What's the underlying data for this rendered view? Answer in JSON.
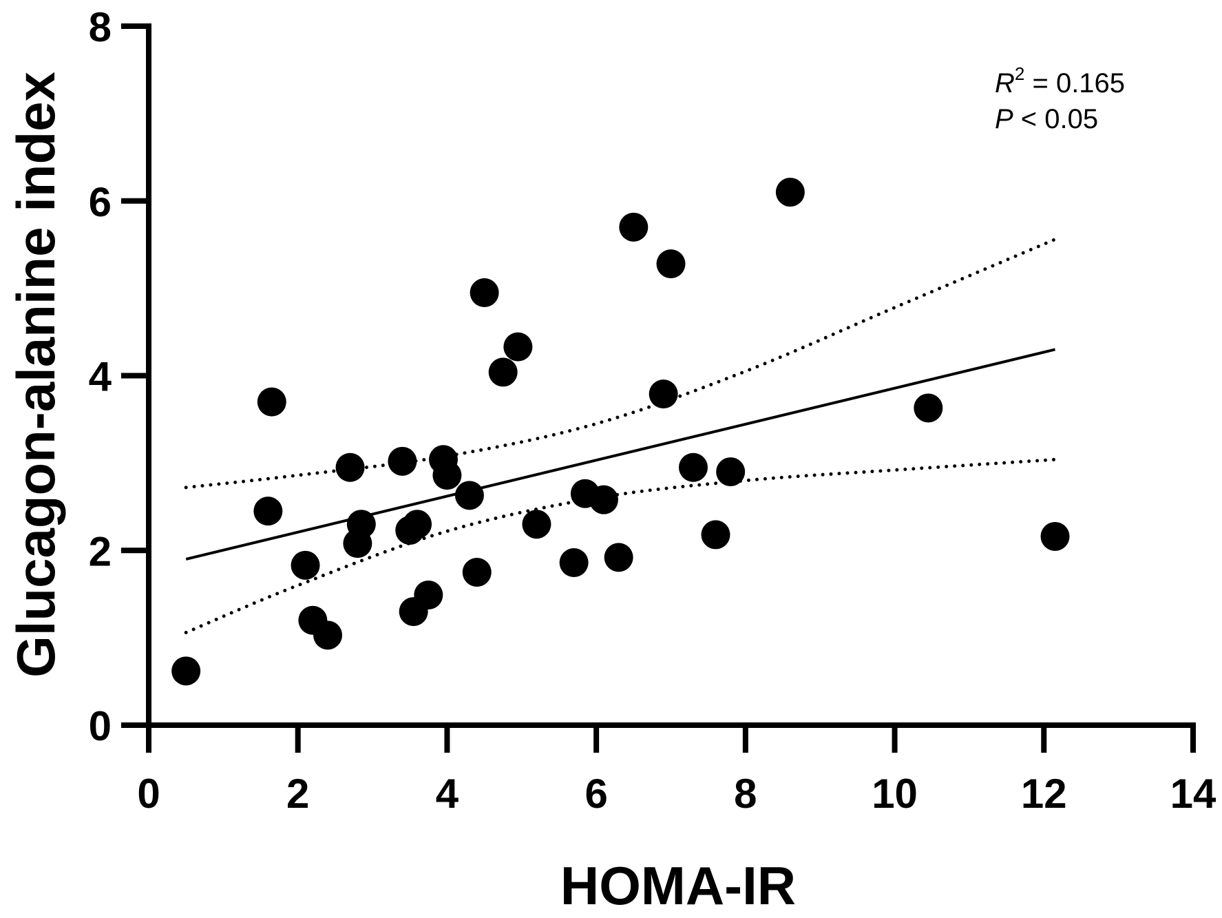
{
  "chart_data": {
    "type": "scatter",
    "title": "",
    "xlabel": "HOMA-IR",
    "ylabel": "Glucagon-alanine index",
    "xlim": [
      0,
      14
    ],
    "ylim": [
      0,
      8
    ],
    "x_ticks": [
      0,
      2,
      4,
      6,
      8,
      10,
      12,
      14
    ],
    "y_ticks": [
      0,
      2,
      4,
      6,
      8
    ],
    "x_tick_labels": [
      "0",
      "2",
      "4",
      "6",
      "8",
      "10",
      "12",
      "14"
    ],
    "y_tick_labels": [
      "0",
      "2",
      "4",
      "6",
      "8"
    ],
    "grid": false,
    "legend": "none",
    "marker_color": "#000000",
    "points": [
      {
        "x": 0.5,
        "y": 0.62
      },
      {
        "x": 1.6,
        "y": 2.45
      },
      {
        "x": 1.65,
        "y": 3.7
      },
      {
        "x": 2.1,
        "y": 1.83
      },
      {
        "x": 2.2,
        "y": 1.2
      },
      {
        "x": 2.4,
        "y": 1.03
      },
      {
        "x": 2.7,
        "y": 2.95
      },
      {
        "x": 2.8,
        "y": 2.08
      },
      {
        "x": 2.85,
        "y": 2.3
      },
      {
        "x": 3.4,
        "y": 3.02
      },
      {
        "x": 3.5,
        "y": 2.23
      },
      {
        "x": 3.6,
        "y": 2.3
      },
      {
        "x": 3.55,
        "y": 1.3
      },
      {
        "x": 3.75,
        "y": 1.49
      },
      {
        "x": 3.95,
        "y": 3.04
      },
      {
        "x": 4.0,
        "y": 2.86
      },
      {
        "x": 4.3,
        "y": 2.63
      },
      {
        "x": 4.4,
        "y": 1.75
      },
      {
        "x": 4.5,
        "y": 4.95
      },
      {
        "x": 4.75,
        "y": 4.04
      },
      {
        "x": 4.95,
        "y": 4.33
      },
      {
        "x": 5.2,
        "y": 2.3
      },
      {
        "x": 5.7,
        "y": 1.86
      },
      {
        "x": 5.85,
        "y": 2.65
      },
      {
        "x": 6.1,
        "y": 2.58
      },
      {
        "x": 6.3,
        "y": 1.92
      },
      {
        "x": 6.5,
        "y": 5.7
      },
      {
        "x": 6.9,
        "y": 3.79
      },
      {
        "x": 7.0,
        "y": 5.28
      },
      {
        "x": 7.3,
        "y": 2.95
      },
      {
        "x": 7.6,
        "y": 2.18
      },
      {
        "x": 7.8,
        "y": 2.9
      },
      {
        "x": 8.6,
        "y": 6.1
      },
      {
        "x": 10.45,
        "y": 3.63
      },
      {
        "x": 12.15,
        "y": 2.16
      }
    ],
    "regression_line": {
      "x": [
        0.5,
        12.15
      ],
      "y": [
        1.9,
        4.3
      ]
    },
    "confidence_band": {
      "upper": {
        "x": [
          0.5,
          2,
          4,
          6,
          8,
          10,
          12.15
        ],
        "y": [
          2.72,
          2.86,
          3.08,
          3.45,
          4.05,
          4.78,
          5.56
        ]
      },
      "lower": {
        "x": [
          0.5,
          2,
          4,
          6,
          8,
          10,
          12.15
        ],
        "y": [
          1.06,
          1.6,
          2.22,
          2.6,
          2.8,
          2.92,
          3.04
        ]
      }
    },
    "annotations": {
      "r_symbol": "R",
      "r_exponent": "2",
      "r_value": " = 0.165",
      "p_symbol": "P",
      "p_value": " < 0.05"
    }
  }
}
